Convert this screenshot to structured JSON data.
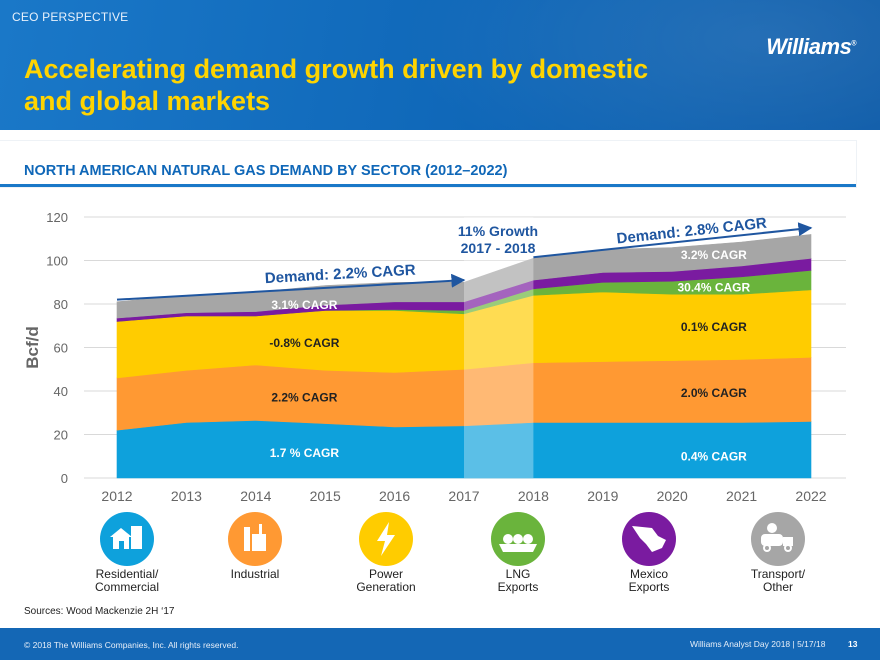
{
  "header": {
    "kicker": "CEO PERSPECTIVE",
    "title_line1": "Accelerating demand growth driven by domestic",
    "title_line2": "and global markets",
    "logo": "Williams"
  },
  "section_title": "NORTH AMERICAN NATURAL GAS DEMAND BY SECTOR (2012–2022)",
  "chart_data": {
    "type": "area",
    "stacked": true,
    "x": [
      2012,
      2013,
      2014,
      2015,
      2016,
      2017,
      2018,
      2019,
      2020,
      2021,
      2022
    ],
    "ylabel": "Bcf/d",
    "ylim": [
      0,
      120
    ],
    "yticks": [
      0,
      20,
      40,
      60,
      80,
      100,
      120
    ],
    "grid": true,
    "series": [
      {
        "key": "residential",
        "color": "#0ea1dc",
        "values": [
          22,
          25.5,
          26.5,
          25,
          23.5,
          24,
          25.5,
          25.5,
          25.5,
          25.5,
          26
        ]
      },
      {
        "key": "industrial",
        "color": "#ff9933",
        "values": [
          24,
          24,
          25.5,
          24.5,
          25,
          26,
          27.5,
          28,
          28.5,
          29,
          29.5
        ]
      },
      {
        "key": "power",
        "color": "#ffcc00",
        "values": [
          26,
          25,
          22.5,
          27.5,
          28.5,
          25.5,
          31,
          32,
          30.5,
          30,
          31
        ]
      },
      {
        "key": "lng",
        "color": "#6ab43c",
        "values": [
          0,
          0,
          0,
          0,
          0.5,
          1.5,
          3,
          4.5,
          6,
          8,
          9
        ]
      },
      {
        "key": "mexico",
        "color": "#7a1ba0",
        "values": [
          1.5,
          1.5,
          2,
          2.5,
          3.5,
          4,
          4,
          4.5,
          4.5,
          5,
          5.5
        ]
      },
      {
        "key": "transport",
        "color": "#a6a6a6",
        "values": [
          7.5,
          8,
          9,
          9,
          9,
          9,
          10,
          10.5,
          11,
          11,
          11
        ]
      }
    ],
    "highlight_range": [
      2017,
      2018
    ],
    "growth_note": [
      "11% Growth",
      "2017 - 2018"
    ],
    "demand_annotations": [
      {
        "text": "Demand: 2.2% CAGR",
        "from": [
          2012,
          82
        ],
        "to": [
          2017,
          91
        ]
      },
      {
        "text": "Demand: 2.8% CAGR",
        "from": [
          2018,
          101.5
        ],
        "to": [
          2022,
          115
        ]
      }
    ],
    "cagr_labels_left": [
      {
        "text": "3.1% CAGR",
        "x": 2014.7,
        "y": 79.5,
        "color": "#ffffff"
      },
      {
        "text": "-0.8% CAGR",
        "x": 2014.7,
        "y": 62,
        "color": "#222222"
      },
      {
        "text": "2.2% CAGR",
        "x": 2014.7,
        "y": 37,
        "color": "#222222"
      },
      {
        "text": "1.7 % CAGR",
        "x": 2014.7,
        "y": 11.5,
        "color": "#ffffff"
      }
    ],
    "cagr_labels_right": [
      {
        "text": "3.2% CAGR",
        "x": 2020.6,
        "y": 102.5,
        "color": "#ffffff"
      },
      {
        "text": "30.4% CAGR",
        "x": 2020.6,
        "y": 87.5,
        "color": "#ffffff"
      },
      {
        "text": "0.1% CAGR",
        "x": 2020.6,
        "y": 69.5,
        "color": "#222222"
      },
      {
        "text": "2.0% CAGR",
        "x": 2020.6,
        "y": 39,
        "color": "#222222"
      },
      {
        "text": "0.4% CAGR",
        "x": 2020.6,
        "y": 10,
        "color": "#ffffff"
      }
    ]
  },
  "legend": [
    {
      "key": "residential",
      "icon": "house-icon",
      "color": "#0ea1dc",
      "line1": "Residential/",
      "line2": "Commercial"
    },
    {
      "key": "industrial",
      "icon": "factory-icon",
      "color": "#ff9933",
      "line1": "Industrial",
      "line2": ""
    },
    {
      "key": "power",
      "icon": "lightning-icon",
      "color": "#ffcc00",
      "line1": "Power",
      "line2": "Generation"
    },
    {
      "key": "lng",
      "icon": "lng-ship-icon",
      "color": "#6ab43c",
      "line1": "LNG",
      "line2": "Exports"
    },
    {
      "key": "mexico",
      "icon": "mexico-map-icon",
      "color": "#7a1ba0",
      "line1": "Mexico",
      "line2": "Exports"
    },
    {
      "key": "transport",
      "icon": "truck-icon",
      "color": "#a6a6a6",
      "line1": "Transport/",
      "line2": "Other"
    }
  ],
  "sources": "Sources: Wood Mackenzie 2H ‘17",
  "footer": {
    "copyright": "© 2018 The Williams Companies, Inc. All rights reserved.",
    "event": "Williams Analyst Day 2018  |  5/17/18",
    "page": "13"
  }
}
